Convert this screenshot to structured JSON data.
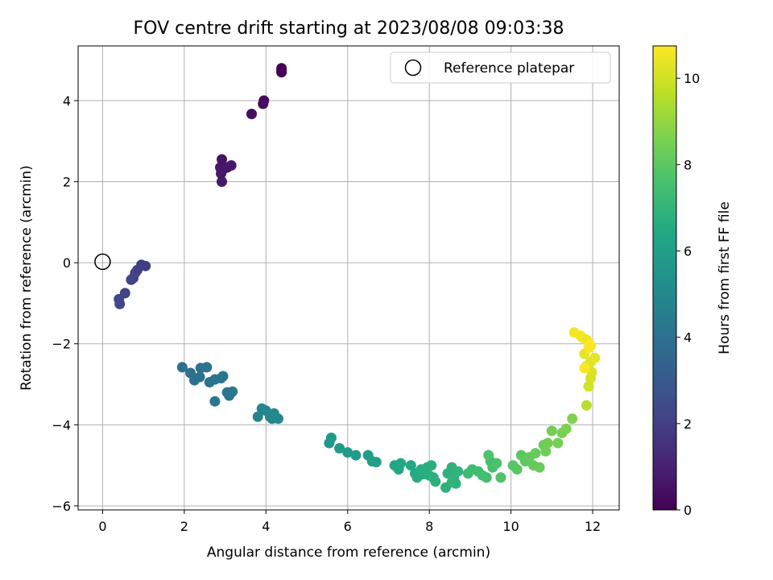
{
  "chart_data": {
    "type": "scatter",
    "title": "FOV centre drift starting at 2023/08/08 09:03:38",
    "xlabel": "Angular distance from reference (arcmin)",
    "ylabel": "Rotation from reference (arcmin)",
    "xlim": [
      -0.6,
      12.65
    ],
    "ylim": [
      -6.1,
      5.35
    ],
    "xticks": [
      0,
      2,
      4,
      6,
      8,
      10,
      12
    ],
    "yticks": [
      -6,
      -4,
      -2,
      0,
      2,
      4
    ],
    "grid": true,
    "legend": {
      "location": "upper right",
      "entries": [
        "Reference platepar"
      ]
    },
    "reference_point": {
      "x": 0,
      "y": 0,
      "label": "Reference platepar"
    },
    "colorbar": {
      "label": "Hours from first FF file",
      "min": 0,
      "max": 10.75,
      "ticks": [
        0,
        2,
        4,
        6,
        8,
        10
      ],
      "colormap": "viridis"
    },
    "points": [
      [
        4.38,
        4.8,
        0.0
      ],
      [
        4.38,
        4.75,
        0.05
      ],
      [
        4.38,
        4.7,
        0.1
      ],
      [
        3.95,
        4.0,
        0.3
      ],
      [
        3.93,
        3.92,
        0.35
      ],
      [
        3.65,
        3.67,
        0.4
      ],
      [
        2.92,
        2.55,
        0.6
      ],
      [
        2.88,
        2.35,
        0.63
      ],
      [
        2.95,
        2.3,
        0.65
      ],
      [
        3.05,
        2.35,
        0.68
      ],
      [
        3.15,
        2.4,
        0.7
      ],
      [
        2.9,
        2.2,
        0.72
      ],
      [
        2.92,
        2.0,
        0.75
      ],
      [
        0.95,
        -0.05,
        1.9
      ],
      [
        1.05,
        -0.08,
        1.95
      ],
      [
        0.85,
        -0.18,
        2.0
      ],
      [
        0.8,
        -0.25,
        2.05
      ],
      [
        0.75,
        -0.38,
        2.1
      ],
      [
        0.7,
        -0.42,
        2.15
      ],
      [
        0.55,
        -0.75,
        2.2
      ],
      [
        0.4,
        -0.9,
        2.25
      ],
      [
        0.42,
        -1.02,
        2.3
      ],
      [
        1.95,
        -2.58,
        3.9
      ],
      [
        2.15,
        -2.72,
        3.95
      ],
      [
        2.25,
        -2.9,
        4.0
      ],
      [
        2.38,
        -2.82,
        4.02
      ],
      [
        2.4,
        -2.6,
        4.05
      ],
      [
        2.55,
        -2.58,
        4.08
      ],
      [
        2.62,
        -2.95,
        4.1
      ],
      [
        2.75,
        -2.88,
        4.12
      ],
      [
        2.9,
        -2.85,
        4.15
      ],
      [
        2.95,
        -2.8,
        4.18
      ],
      [
        3.05,
        -3.2,
        4.2
      ],
      [
        3.1,
        -3.28,
        4.22
      ],
      [
        3.18,
        -3.18,
        4.25
      ],
      [
        2.75,
        -3.42,
        4.28
      ],
      [
        3.8,
        -3.8,
        4.8
      ],
      [
        3.9,
        -3.6,
        4.85
      ],
      [
        4.0,
        -3.65,
        4.9
      ],
      [
        4.1,
        -3.8,
        4.95
      ],
      [
        4.15,
        -3.85,
        5.0
      ],
      [
        4.2,
        -3.72,
        5.02
      ],
      [
        4.3,
        -3.85,
        5.05
      ],
      [
        5.55,
        -4.45,
        5.7
      ],
      [
        5.6,
        -4.32,
        5.75
      ],
      [
        5.8,
        -4.58,
        5.8
      ],
      [
        6.0,
        -4.68,
        5.85
      ],
      [
        6.2,
        -4.75,
        5.9
      ],
      [
        6.5,
        -4.75,
        5.95
      ],
      [
        6.6,
        -4.9,
        6.0
      ],
      [
        6.7,
        -4.92,
        6.05
      ],
      [
        7.15,
        -5.0,
        6.3
      ],
      [
        7.25,
        -5.1,
        6.35
      ],
      [
        7.3,
        -4.95,
        6.4
      ],
      [
        7.55,
        -5.0,
        6.45
      ],
      [
        7.65,
        -5.2,
        6.5
      ],
      [
        7.7,
        -5.3,
        6.55
      ],
      [
        7.8,
        -5.1,
        6.6
      ],
      [
        7.85,
        -5.22,
        6.65
      ],
      [
        7.95,
        -5.05,
        6.7
      ],
      [
        8.0,
        -5.25,
        6.72
      ],
      [
        8.05,
        -5.0,
        6.75
      ],
      [
        8.1,
        -5.3,
        6.78
      ],
      [
        8.15,
        -5.4,
        6.8
      ],
      [
        8.4,
        -5.55,
        6.82
      ],
      [
        8.45,
        -5.2,
        6.85
      ],
      [
        8.55,
        -5.05,
        6.88
      ],
      [
        8.6,
        -5.3,
        6.9
      ],
      [
        8.65,
        -5.45,
        6.92
      ],
      [
        8.7,
        -5.15,
        6.95
      ],
      [
        8.55,
        -5.42,
        6.97
      ],
      [
        8.95,
        -5.2,
        7.3
      ],
      [
        9.05,
        -5.1,
        7.35
      ],
      [
        9.2,
        -5.15,
        7.4
      ],
      [
        9.3,
        -5.25,
        7.45
      ],
      [
        9.4,
        -5.3,
        7.5
      ],
      [
        9.5,
        -4.9,
        7.55
      ],
      [
        9.55,
        -5.05,
        7.6
      ],
      [
        9.65,
        -4.95,
        7.65
      ],
      [
        9.75,
        -5.3,
        7.7
      ],
      [
        9.45,
        -4.75,
        7.75
      ],
      [
        10.05,
        -5.0,
        7.9
      ],
      [
        10.15,
        -5.1,
        7.95
      ],
      [
        10.25,
        -4.75,
        8.0
      ],
      [
        10.35,
        -4.9,
        8.05
      ],
      [
        10.45,
        -4.8,
        8.1
      ],
      [
        10.55,
        -5.0,
        8.15
      ],
      [
        10.6,
        -4.7,
        8.2
      ],
      [
        10.7,
        -5.05,
        8.25
      ],
      [
        10.8,
        -4.5,
        8.3
      ],
      [
        10.85,
        -4.65,
        8.35
      ],
      [
        10.9,
        -4.45,
        8.4
      ],
      [
        11.0,
        -4.15,
        8.45
      ],
      [
        11.15,
        -4.45,
        8.5
      ],
      [
        11.25,
        -4.2,
        8.55
      ],
      [
        11.35,
        -4.1,
        8.6
      ],
      [
        11.5,
        -3.85,
        8.7
      ],
      [
        11.85,
        -3.52,
        9.6
      ],
      [
        11.9,
        -3.05,
        10.0
      ],
      [
        11.95,
        -2.85,
        10.1
      ],
      [
        11.98,
        -2.7,
        10.15
      ],
      [
        11.85,
        -2.55,
        10.2
      ],
      [
        11.95,
        -2.45,
        10.25
      ],
      [
        12.05,
        -2.35,
        10.3
      ],
      [
        11.8,
        -2.25,
        10.35
      ],
      [
        11.95,
        -2.05,
        10.4
      ],
      [
        11.85,
        -1.9,
        10.45
      ],
      [
        11.75,
        -1.85,
        10.5
      ],
      [
        11.7,
        -1.8,
        10.55
      ],
      [
        11.55,
        -1.72,
        10.6
      ],
      [
        11.9,
        -2.1,
        10.65
      ],
      [
        11.8,
        -2.6,
        10.7
      ],
      [
        11.92,
        -2.0,
        10.75
      ]
    ]
  }
}
